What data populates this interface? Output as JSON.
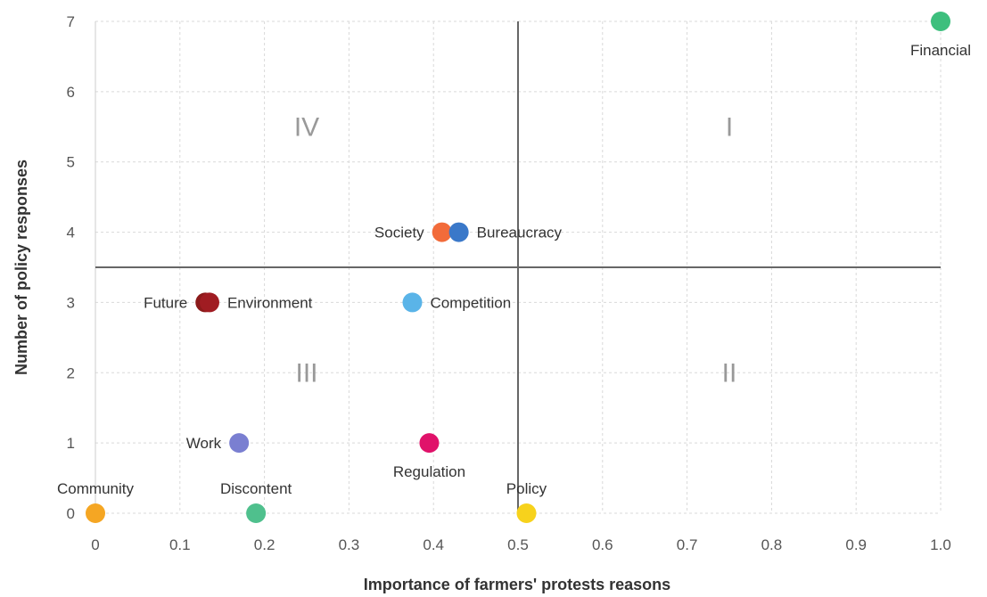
{
  "chart_data": {
    "type": "scatter",
    "xlabel": "Importance of farmers' protests reasons",
    "ylabel": "Number of policy responses",
    "xlim": [
      0,
      1.0
    ],
    "ylim": [
      0,
      7
    ],
    "x_ticks": [
      "0",
      "0.1",
      "0.2",
      "0.3",
      "0.4",
      "0.5",
      "0.6",
      "0.7",
      "0.8",
      "0.9",
      "1.0"
    ],
    "y_ticks": [
      "0",
      "1",
      "2",
      "3",
      "4",
      "5",
      "6",
      "7"
    ],
    "grid": true,
    "divider_lines": {
      "x": 0.5,
      "y": 3.5
    },
    "quadrants": [
      {
        "label": "I",
        "x": 0.75,
        "y": 5.5
      },
      {
        "label": "II",
        "x": 0.75,
        "y": 2.0
      },
      {
        "label": "III",
        "x": 0.25,
        "y": 2.0
      },
      {
        "label": "IV",
        "x": 0.25,
        "y": 5.5
      }
    ],
    "points": [
      {
        "label": "Financial",
        "x": 1.0,
        "y": 7,
        "color": "#3dbf7d",
        "label_pos": "below"
      },
      {
        "label": "Society",
        "x": 0.41,
        "y": 4,
        "color": "#f26b3a",
        "label_pos": "left"
      },
      {
        "label": "Bureaucracy",
        "x": 0.43,
        "y": 4,
        "color": "#3a78c9",
        "label_pos": "right"
      },
      {
        "label": "Future",
        "x": 0.13,
        "y": 3,
        "color": "#8b1a1a",
        "label_pos": "left"
      },
      {
        "label": "Environment",
        "x": 0.135,
        "y": 3,
        "color": "#a01c22",
        "label_pos": "right"
      },
      {
        "label": "Competition",
        "x": 0.375,
        "y": 3,
        "color": "#5ab4e8",
        "label_pos": "right"
      },
      {
        "label": "Work",
        "x": 0.17,
        "y": 1,
        "color": "#7a7fd1",
        "label_pos": "left"
      },
      {
        "label": "Regulation",
        "x": 0.395,
        "y": 1,
        "color": "#e0126a",
        "label_pos": "below"
      },
      {
        "label": "Community",
        "x": 0.0,
        "y": 0,
        "color": "#f5a623",
        "label_pos": "above"
      },
      {
        "label": "Discontent",
        "x": 0.19,
        "y": 0,
        "color": "#4fc08d",
        "label_pos": "above"
      },
      {
        "label": "Policy",
        "x": 0.51,
        "y": 0,
        "color": "#f7d21c",
        "label_pos": "above"
      }
    ]
  }
}
